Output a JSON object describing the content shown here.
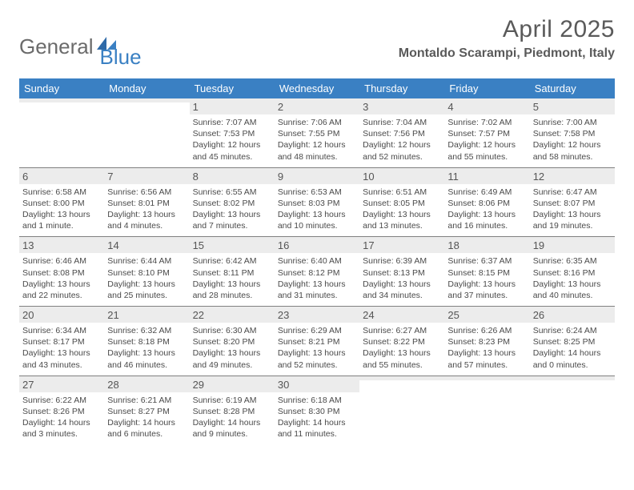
{
  "brand": {
    "general": "General",
    "blue": "Blue"
  },
  "header": {
    "title": "April 2025",
    "location": "Montaldo Scarampi, Piedmont, Italy"
  },
  "colors": {
    "accent": "#3a80c3",
    "header_band": "#3a80c3",
    "daynum_bg": "#ececec",
    "rule": "#808080",
    "text": "#4a4a4a",
    "title": "#5a5a5a"
  },
  "calendar": {
    "dow": [
      "Sunday",
      "Monday",
      "Tuesday",
      "Wednesday",
      "Thursday",
      "Friday",
      "Saturday"
    ],
    "first_weekday_index": 2,
    "days": [
      {
        "n": 1,
        "sunrise": "7:07 AM",
        "sunset": "7:53 PM",
        "daylight": "12 hours and 45 minutes."
      },
      {
        "n": 2,
        "sunrise": "7:06 AM",
        "sunset": "7:55 PM",
        "daylight": "12 hours and 48 minutes."
      },
      {
        "n": 3,
        "sunrise": "7:04 AM",
        "sunset": "7:56 PM",
        "daylight": "12 hours and 52 minutes."
      },
      {
        "n": 4,
        "sunrise": "7:02 AM",
        "sunset": "7:57 PM",
        "daylight": "12 hours and 55 minutes."
      },
      {
        "n": 5,
        "sunrise": "7:00 AM",
        "sunset": "7:58 PM",
        "daylight": "12 hours and 58 minutes."
      },
      {
        "n": 6,
        "sunrise": "6:58 AM",
        "sunset": "8:00 PM",
        "daylight": "13 hours and 1 minute."
      },
      {
        "n": 7,
        "sunrise": "6:56 AM",
        "sunset": "8:01 PM",
        "daylight": "13 hours and 4 minutes."
      },
      {
        "n": 8,
        "sunrise": "6:55 AM",
        "sunset": "8:02 PM",
        "daylight": "13 hours and 7 minutes."
      },
      {
        "n": 9,
        "sunrise": "6:53 AM",
        "sunset": "8:03 PM",
        "daylight": "13 hours and 10 minutes."
      },
      {
        "n": 10,
        "sunrise": "6:51 AM",
        "sunset": "8:05 PM",
        "daylight": "13 hours and 13 minutes."
      },
      {
        "n": 11,
        "sunrise": "6:49 AM",
        "sunset": "8:06 PM",
        "daylight": "13 hours and 16 minutes."
      },
      {
        "n": 12,
        "sunrise": "6:47 AM",
        "sunset": "8:07 PM",
        "daylight": "13 hours and 19 minutes."
      },
      {
        "n": 13,
        "sunrise": "6:46 AM",
        "sunset": "8:08 PM",
        "daylight": "13 hours and 22 minutes."
      },
      {
        "n": 14,
        "sunrise": "6:44 AM",
        "sunset": "8:10 PM",
        "daylight": "13 hours and 25 minutes."
      },
      {
        "n": 15,
        "sunrise": "6:42 AM",
        "sunset": "8:11 PM",
        "daylight": "13 hours and 28 minutes."
      },
      {
        "n": 16,
        "sunrise": "6:40 AM",
        "sunset": "8:12 PM",
        "daylight": "13 hours and 31 minutes."
      },
      {
        "n": 17,
        "sunrise": "6:39 AM",
        "sunset": "8:13 PM",
        "daylight": "13 hours and 34 minutes."
      },
      {
        "n": 18,
        "sunrise": "6:37 AM",
        "sunset": "8:15 PM",
        "daylight": "13 hours and 37 minutes."
      },
      {
        "n": 19,
        "sunrise": "6:35 AM",
        "sunset": "8:16 PM",
        "daylight": "13 hours and 40 minutes."
      },
      {
        "n": 20,
        "sunrise": "6:34 AM",
        "sunset": "8:17 PM",
        "daylight": "13 hours and 43 minutes."
      },
      {
        "n": 21,
        "sunrise": "6:32 AM",
        "sunset": "8:18 PM",
        "daylight": "13 hours and 46 minutes."
      },
      {
        "n": 22,
        "sunrise": "6:30 AM",
        "sunset": "8:20 PM",
        "daylight": "13 hours and 49 minutes."
      },
      {
        "n": 23,
        "sunrise": "6:29 AM",
        "sunset": "8:21 PM",
        "daylight": "13 hours and 52 minutes."
      },
      {
        "n": 24,
        "sunrise": "6:27 AM",
        "sunset": "8:22 PM",
        "daylight": "13 hours and 55 minutes."
      },
      {
        "n": 25,
        "sunrise": "6:26 AM",
        "sunset": "8:23 PM",
        "daylight": "13 hours and 57 minutes."
      },
      {
        "n": 26,
        "sunrise": "6:24 AM",
        "sunset": "8:25 PM",
        "daylight": "14 hours and 0 minutes."
      },
      {
        "n": 27,
        "sunrise": "6:22 AM",
        "sunset": "8:26 PM",
        "daylight": "14 hours and 3 minutes."
      },
      {
        "n": 28,
        "sunrise": "6:21 AM",
        "sunset": "8:27 PM",
        "daylight": "14 hours and 6 minutes."
      },
      {
        "n": 29,
        "sunrise": "6:19 AM",
        "sunset": "8:28 PM",
        "daylight": "14 hours and 9 minutes."
      },
      {
        "n": 30,
        "sunrise": "6:18 AM",
        "sunset": "8:30 PM",
        "daylight": "14 hours and 11 minutes."
      }
    ],
    "labels": {
      "sunrise": "Sunrise:",
      "sunset": "Sunset:",
      "daylight": "Daylight:"
    }
  }
}
